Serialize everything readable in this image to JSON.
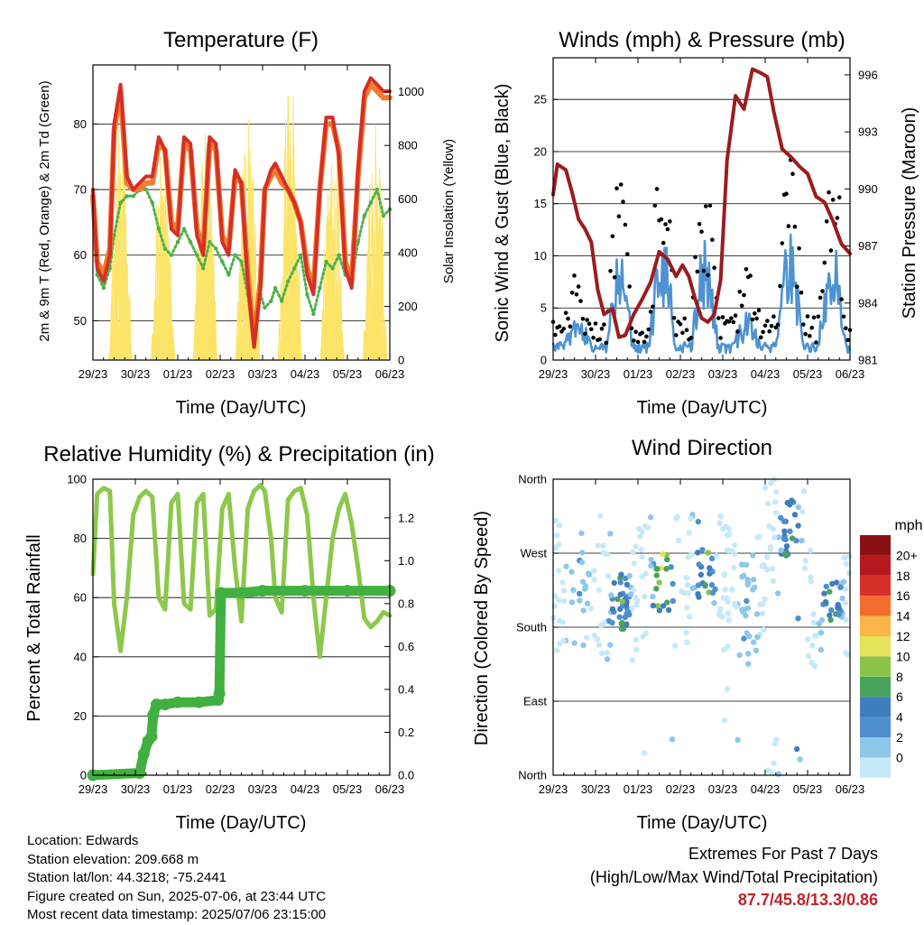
{
  "colors": {
    "temp_2m": "#d62f26",
    "temp_9m": "#f37b2c",
    "dewpoint": "#4fb048",
    "solar": "#fbe468",
    "gust": "#000000",
    "wind": "#4e93d1",
    "pressure": "#9b1c1f",
    "rh": "#8cc84b",
    "precip": "#42b041"
  },
  "wind_colorbar": {
    "title": "mph",
    "labels": [
      "0",
      "2",
      "4",
      "6",
      "8",
      "10",
      "12",
      "14",
      "16",
      "18",
      "20+"
    ],
    "colors": [
      "#c6e9f8",
      "#8ec7ea",
      "#4f8fcf",
      "#3e7ebf",
      "#4aa35c",
      "#8bc34a",
      "#e6e35a",
      "#fbb447",
      "#f46d2d",
      "#d7302a",
      "#b5181d",
      "#8a1113"
    ]
  },
  "footer": {
    "location": "Location: Edwards",
    "elevation": "Station elevation: 209.668 m",
    "latlon": "Station lat/lon: 44.3218; -75.2441",
    "created": "Figure created on Sun, 2025-07-06, at 23:44 UTC",
    "recent": "Most recent data timestamp: 2025/07/06 23:15:00",
    "extremes_title": "Extremes For Past 7 Days",
    "extremes_subtitle": "(High/Low/Max Wind/Total Precipitation)",
    "extremes_values": "87.7/45.8/13.3/0.86"
  },
  "chart_data": [
    {
      "type": "line",
      "title": "Temperature (F)",
      "xlabel": "Time (Day/UTC)",
      "ylabel": "2m & 9m T (Red, Orange) & 2m Td (Green)",
      "y2label": "Solar Insolation (Yellow)",
      "categories": [
        "29/23",
        "30/23",
        "01/23",
        "02/23",
        "03/23",
        "04/23",
        "05/23",
        "06/23"
      ],
      "x": [
        0,
        0.1,
        0.25,
        0.4,
        0.5,
        0.65,
        0.8,
        0.95,
        1.1,
        1.25,
        1.4,
        1.55,
        1.7,
        1.85,
        2.0,
        2.15,
        2.3,
        2.45,
        2.6,
        2.75,
        2.9,
        3.05,
        3.2,
        3.35,
        3.5,
        3.65,
        3.8,
        3.95,
        4.05,
        4.2,
        4.3,
        4.45,
        4.6,
        4.75,
        4.9,
        5.05,
        5.2,
        5.35,
        5.5,
        5.65,
        5.8,
        5.95,
        6.1,
        6.25,
        6.4,
        6.55,
        6.7,
        6.85,
        7.0
      ],
      "ylim": [
        44,
        89
      ],
      "y2lim": [
        0,
        1100
      ],
      "yticks": [
        50,
        60,
        70,
        80
      ],
      "y2ticks": [
        0,
        200,
        400,
        600,
        800,
        1000
      ],
      "series": [
        {
          "name": "2m T",
          "values": [
            70,
            58,
            56,
            60,
            80,
            86,
            72,
            70,
            71,
            72,
            72,
            78,
            76,
            64,
            63,
            78,
            77,
            63,
            60,
            78,
            77,
            62,
            60,
            73,
            71,
            56,
            46,
            55,
            70,
            73,
            74,
            72,
            70,
            68,
            65,
            57,
            54,
            70,
            81,
            81,
            75,
            58,
            55,
            73,
            85,
            87,
            86,
            85,
            85
          ]
        },
        {
          "name": "9m T",
          "values": [
            69,
            59,
            57,
            61,
            79,
            85,
            71,
            70,
            70,
            71,
            71,
            77,
            76,
            65,
            64,
            77,
            76,
            64,
            61,
            77,
            76,
            63,
            61,
            72,
            71,
            57,
            47,
            56,
            70,
            72,
            73,
            71,
            70,
            68,
            65,
            58,
            55,
            70,
            80,
            80,
            76,
            59,
            56,
            72,
            84,
            86,
            85,
            84,
            84
          ]
        },
        {
          "name": "2m Td",
          "values": [
            70,
            57,
            55,
            58,
            63,
            68,
            69,
            69,
            70,
            70,
            68,
            64,
            61,
            60,
            62,
            64,
            62,
            60,
            58,
            62,
            61,
            59,
            57,
            60,
            59,
            54,
            46,
            54,
            52,
            53,
            55,
            53,
            56,
            58,
            60,
            54,
            51,
            55,
            59,
            58,
            60,
            57,
            56,
            62,
            66,
            68,
            70,
            66,
            67
          ]
        },
        {
          "name": "Solar",
          "axis": "y2",
          "days": [
            0,
            1,
            2,
            3,
            4,
            5,
            6,
            7
          ],
          "noon_offset": 0.62,
          "peaks": [
            900,
            820,
            930,
            990,
            1080,
            1010,
            1060,
            900
          ]
        }
      ]
    },
    {
      "type": "scatter",
      "title": "Winds (mph) & Pressure (mb)",
      "xlabel": "Time (Day/UTC)",
      "ylabel": "Sonic Wind & Gust (Blue, Black)",
      "y2label": "Station Pressure (Maroon)",
      "categories": [
        "29/23",
        "30/23",
        "01/23",
        "02/23",
        "03/23",
        "04/23",
        "05/23",
        "06/23"
      ],
      "ylim": [
        0,
        29
      ],
      "y2lim": [
        981,
        996.9
      ],
      "yticks": [
        0,
        5,
        10,
        15,
        20,
        25
      ],
      "y2ticks": [
        981,
        984,
        987,
        990,
        993,
        996
      ],
      "daily_peaks": [
        4,
        9,
        11,
        10,
        4,
        11,
        11,
        12
      ],
      "pressure": {
        "x": [
          0,
          0.1,
          0.3,
          0.45,
          0.6,
          0.75,
          0.9,
          1.05,
          1.2,
          1.4,
          1.55,
          1.7,
          1.9,
          2.1,
          2.3,
          2.5,
          2.7,
          2.9,
          3.05,
          3.2,
          3.35,
          3.5,
          3.65,
          3.8,
          3.95,
          4.1,
          4.3,
          4.5,
          4.7,
          4.9,
          5.05,
          5.2,
          5.4,
          5.6,
          5.8,
          6.0,
          6.2,
          6.4,
          6.6,
          6.8,
          7.0
        ],
        "values": [
          989.7,
          991.3,
          991.0,
          989.8,
          988.4,
          987.9,
          987.2,
          984.7,
          983.4,
          983.7,
          982.2,
          982.3,
          983.4,
          984.2,
          985.1,
          986.7,
          986.3,
          985.4,
          986.0,
          985.4,
          984.2,
          983.2,
          983.0,
          983.4,
          985.2,
          991.5,
          994.9,
          994.2,
          996.3,
          996.1,
          995.9,
          994.1,
          992.1,
          991.7,
          991.2,
          990.8,
          989.6,
          989.3,
          988.3,
          987.1,
          986.6
        ]
      }
    },
    {
      "type": "line",
      "title": "Relative Humidity (%) & Precipitation (in)",
      "xlabel": "Time (Day/UTC)",
      "ylabel": "Percent & Total Rainfall",
      "categories": [
        "29/23",
        "30/23",
        "01/23",
        "02/23",
        "03/23",
        "04/23",
        "05/23",
        "06/23"
      ],
      "ylim": [
        0,
        100
      ],
      "y2lim": [
        0,
        1.38
      ],
      "yticks": [
        0,
        20,
        40,
        60,
        80,
        100
      ],
      "y2ticks": [
        0.0,
        0.2,
        0.4,
        0.6,
        0.8,
        1.0,
        1.2
      ],
      "series": [
        {
          "name": "RH",
          "x": [
            0,
            0.1,
            0.25,
            0.4,
            0.5,
            0.65,
            0.8,
            0.95,
            1.1,
            1.25,
            1.4,
            1.55,
            1.7,
            1.85,
            2.0,
            2.15,
            2.3,
            2.45,
            2.6,
            2.75,
            2.9,
            3.05,
            3.2,
            3.35,
            3.5,
            3.65,
            3.8,
            3.95,
            4.05,
            4.2,
            4.3,
            4.45,
            4.6,
            4.75,
            4.9,
            5.05,
            5.2,
            5.35,
            5.5,
            5.65,
            5.8,
            5.95,
            6.1,
            6.25,
            6.4,
            6.55,
            6.7,
            6.85,
            7.0
          ],
          "values": [
            68,
            95,
            97,
            96,
            58,
            42,
            60,
            88,
            94,
            96,
            94,
            60,
            56,
            92,
            95,
            58,
            56,
            92,
            95,
            54,
            56,
            90,
            95,
            70,
            52,
            90,
            96,
            98,
            96,
            80,
            60,
            55,
            93,
            96,
            97,
            88,
            60,
            40,
            60,
            80,
            90,
            95,
            85,
            70,
            53,
            50,
            52,
            55,
            54
          ]
        },
        {
          "name": "Precip",
          "axis": "y2",
          "x": [
            0,
            1.1,
            1.2,
            1.3,
            1.38,
            1.42,
            1.5,
            1.7,
            2.0,
            2.5,
            2.95,
            2.98,
            3.02,
            3.5,
            4.0,
            5.0,
            6.0,
            7.0
          ],
          "values": [
            0.0,
            0.01,
            0.1,
            0.16,
            0.18,
            0.28,
            0.33,
            0.33,
            0.34,
            0.34,
            0.35,
            0.38,
            0.85,
            0.85,
            0.86,
            0.86,
            0.86,
            0.86
          ]
        }
      ]
    },
    {
      "type": "scatter",
      "title": "Wind Direction",
      "xlabel": "Time (Day/UTC)",
      "ylabel": "Direction (Colored By Speed)",
      "categories": [
        "29/23",
        "30/23",
        "01/23",
        "02/23",
        "03/23",
        "04/23",
        "05/23",
        "06/23"
      ],
      "yticks": [
        "North",
        "East",
        "South",
        "West",
        "North"
      ],
      "ylim": [
        0,
        360
      ],
      "direction_centers": [
        230,
        210,
        235,
        240,
        225,
        300,
        200,
        230
      ],
      "speed_peaks": [
        4,
        9,
        11,
        10,
        4,
        9,
        9,
        14
      ]
    }
  ]
}
